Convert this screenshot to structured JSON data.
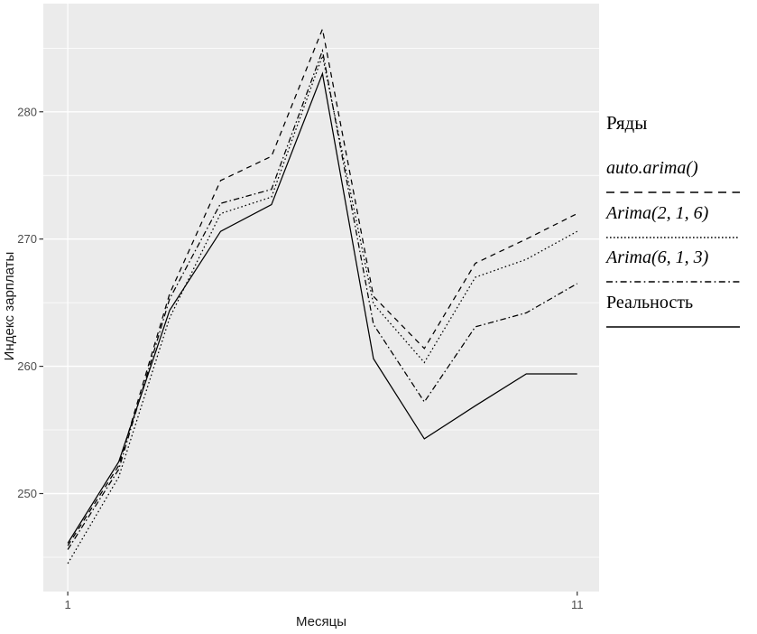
{
  "colors": {
    "background": "#ffffff",
    "panel_background": "#ebebeb",
    "gridline": "#ffffff",
    "series_line": "#000000",
    "tick_label": "#4d4d4d",
    "axis_title": "#1a1a1a",
    "tick_mark": "#333333"
  },
  "chart_data": {
    "type": "line",
    "title": "",
    "xlabel": "Месяцы",
    "ylabel": "Индекс зарплаты",
    "x": [
      1,
      2,
      3,
      4,
      5,
      6,
      7,
      8,
      9,
      10,
      11
    ],
    "x_breaks": [
      1,
      11
    ],
    "x_gridlines": [
      1
    ],
    "y_breaks": [
      250,
      260,
      270,
      280
    ],
    "y_minor_breaks": [
      245,
      255,
      265,
      275,
      285
    ],
    "xlim": [
      0.52,
      11.43
    ],
    "ylim": [
      242.3,
      288.5
    ],
    "grid": "horizontal major+minor white lines on grey panel; vertical line at month 1",
    "legend": {
      "title": "Ряды",
      "position": "right"
    },
    "series": [
      {
        "name": "auto.arima()",
        "linetype": "dashed",
        "italic": true,
        "color": "#000000",
        "values": [
          245.9,
          252.2,
          265.7,
          274.6,
          276.5,
          286.5,
          265.5,
          261.4,
          268.1,
          270.0,
          272.0
        ]
      },
      {
        "name": "Arima(2, 1, 6)",
        "linetype": "dotted",
        "italic": true,
        "color": "#000000",
        "values": [
          244.5,
          251.3,
          263.8,
          272.0,
          273.3,
          284.4,
          264.9,
          260.3,
          267.0,
          268.4,
          270.6
        ]
      },
      {
        "name": "Arima(6, 1, 3)",
        "linetype": "dashdot",
        "italic": true,
        "color": "#000000",
        "values": [
          245.6,
          251.9,
          265.3,
          272.8,
          273.9,
          284.8,
          263.3,
          257.2,
          263.1,
          264.2,
          266.5
        ]
      },
      {
        "name": "Реальность",
        "linetype": "solid",
        "italic": false,
        "color": "#000000",
        "values": [
          246.1,
          252.5,
          264.4,
          270.6,
          272.7,
          283.0,
          260.6,
          254.3,
          256.9,
          259.4,
          259.4
        ]
      }
    ]
  }
}
